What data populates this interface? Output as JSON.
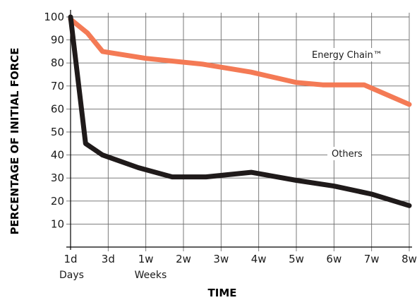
{
  "chart_data": {
    "type": "line",
    "xlabel": "TIME",
    "ylabel": "PERCENTAGE OF INITIAL FORCE",
    "title": "",
    "ylim": [
      0,
      100
    ],
    "yticks": [
      10,
      20,
      30,
      40,
      50,
      60,
      70,
      80,
      90,
      100
    ],
    "x_ticks": [
      "1d",
      "3d",
      "1w",
      "2w",
      "3w",
      "4w",
      "5w",
      "6w",
      "7w",
      "8w"
    ],
    "x_sublabels": [
      {
        "text": "Days",
        "under": "1d"
      },
      {
        "text": "Weeks",
        "under": "1w"
      }
    ],
    "grid": true,
    "series": [
      {
        "name": "Energy Chain™",
        "color": "#f47a55",
        "x": [
          0,
          1,
          2,
          3,
          4,
          5,
          6,
          7,
          8,
          9
        ],
        "points": [
          [
            0,
            99
          ],
          [
            0.45,
            93
          ],
          [
            0.85,
            85
          ],
          [
            2,
            82
          ],
          [
            3.5,
            79.5
          ],
          [
            4.8,
            76
          ],
          [
            6,
            71.5
          ],
          [
            6.7,
            70.5
          ],
          [
            7.8,
            70.5
          ],
          [
            9,
            62
          ]
        ],
        "label_text": "Energy Chain™"
      },
      {
        "name": "Others",
        "color": "#1f1a1a",
        "points": [
          [
            0,
            100
          ],
          [
            0.4,
            45
          ],
          [
            0.85,
            40
          ],
          [
            1.8,
            34.5
          ],
          [
            2.7,
            30.5
          ],
          [
            3.6,
            30.5
          ],
          [
            4.8,
            32.5
          ],
          [
            6,
            29
          ],
          [
            7,
            26.5
          ],
          [
            8,
            23
          ],
          [
            9,
            18
          ]
        ],
        "label_text": "Others"
      }
    ]
  }
}
